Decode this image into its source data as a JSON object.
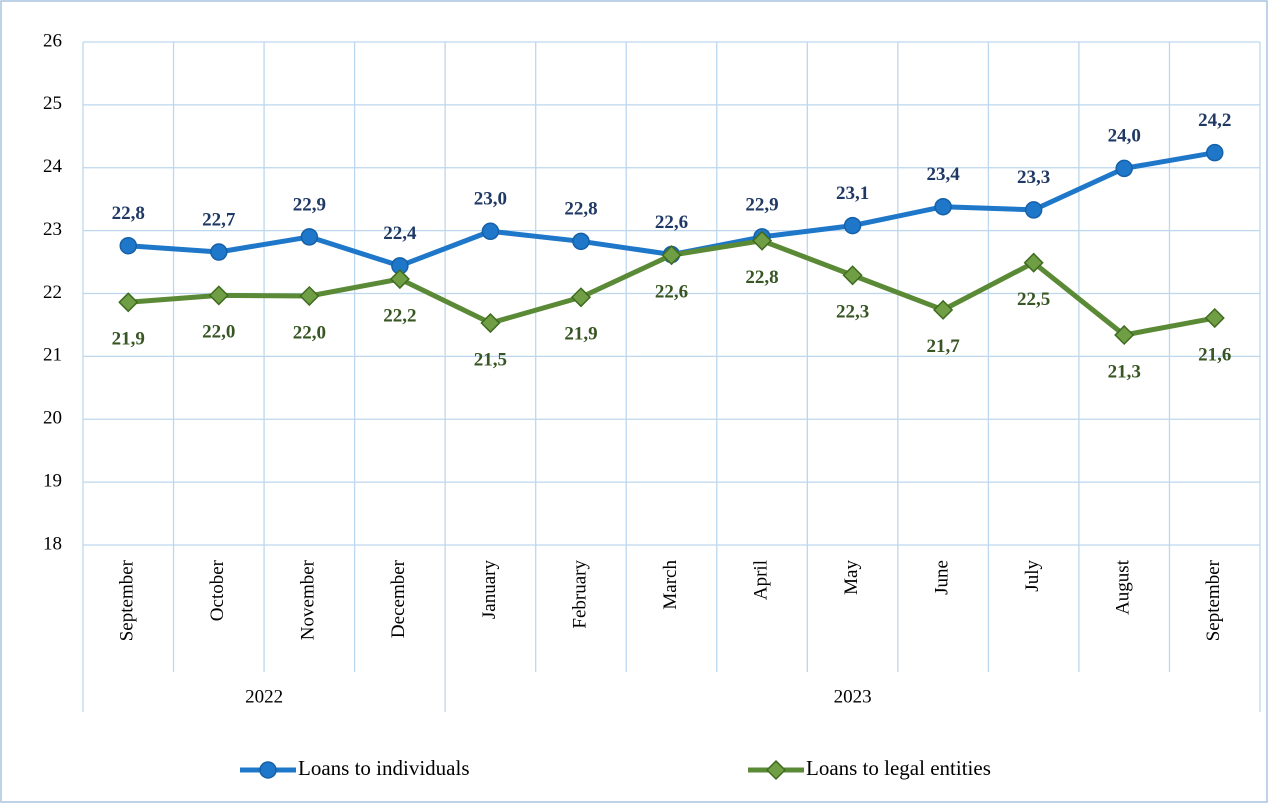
{
  "chart_data": {
    "type": "line",
    "categories": [
      "September",
      "October",
      "November",
      "December",
      "January",
      "February",
      "March",
      "April",
      "May",
      "June",
      "July",
      "August",
      "September"
    ],
    "x_groups": [
      {
        "label": "2022",
        "span": 4
      },
      {
        "label": "2023",
        "span": 9
      }
    ],
    "series": [
      {
        "name": "Loans to individuals",
        "color": "#1f77c9",
        "marker": "circle",
        "label_position": "above",
        "values": [
          22.76,
          22.66,
          22.9,
          22.44,
          22.99,
          22.83,
          22.62,
          22.9,
          23.08,
          23.38,
          23.33,
          23.99,
          24.24
        ],
        "value_labels": [
          "22,8",
          "22,7",
          "22,9",
          "22,4",
          "23,0",
          "22,8",
          "22,6",
          "22,9",
          "23,1",
          "23,4",
          "23,3",
          "24,0",
          "24,2"
        ]
      },
      {
        "name": "Loans to legal entities",
        "color": "#5b8a36",
        "marker": "diamond",
        "label_position": "below",
        "values": [
          21.86,
          21.97,
          21.96,
          22.23,
          21.53,
          21.94,
          22.61,
          22.84,
          22.29,
          21.74,
          22.49,
          21.34,
          21.61
        ],
        "value_labels": [
          "21,9",
          "22,0",
          "22,0",
          "22,2",
          "21,5",
          "21,9",
          "22,6",
          "22,8",
          "22,3",
          "21,7",
          "22,5",
          "21,3",
          "21,6"
        ]
      }
    ],
    "ylim": [
      18,
      26
    ],
    "yticks": [
      18,
      19,
      20,
      21,
      22,
      23,
      24,
      25,
      26
    ],
    "grid": true,
    "legend": "bottom"
  }
}
